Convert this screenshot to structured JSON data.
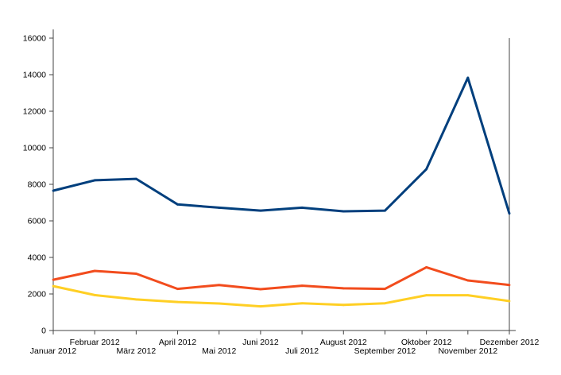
{
  "chart_data": {
    "type": "line",
    "title": "",
    "xlabel": "",
    "ylabel": "",
    "categories": [
      "Januar 2012",
      "Februar 2012",
      "März 2012",
      "April 2012",
      "Mai 2012",
      "Juni 2012",
      "Juli 2012",
      "August 2012",
      "September 2012",
      "Oktober 2012",
      "November 2012",
      "Dezember 2012"
    ],
    "ylim": [
      0,
      16000
    ],
    "yticks": [
      0,
      2000,
      4000,
      6000,
      8000,
      10000,
      12000,
      14000,
      16000
    ],
    "grid": false,
    "legend": "none",
    "series": [
      {
        "color": "#003f7d",
        "values": [
          7650,
          8220,
          8300,
          6900,
          6720,
          6560,
          6720,
          6520,
          6560,
          8830,
          13830,
          6400
        ]
      },
      {
        "color": "#f24c1d",
        "values": [
          2780,
          3260,
          3110,
          2280,
          2490,
          2260,
          2450,
          2310,
          2280,
          3460,
          2740,
          2490
        ]
      },
      {
        "color": "#ffcf24",
        "values": [
          2430,
          1940,
          1700,
          1560,
          1480,
          1320,
          1490,
          1400,
          1490,
          1930,
          1930,
          1610
        ]
      }
    ]
  }
}
